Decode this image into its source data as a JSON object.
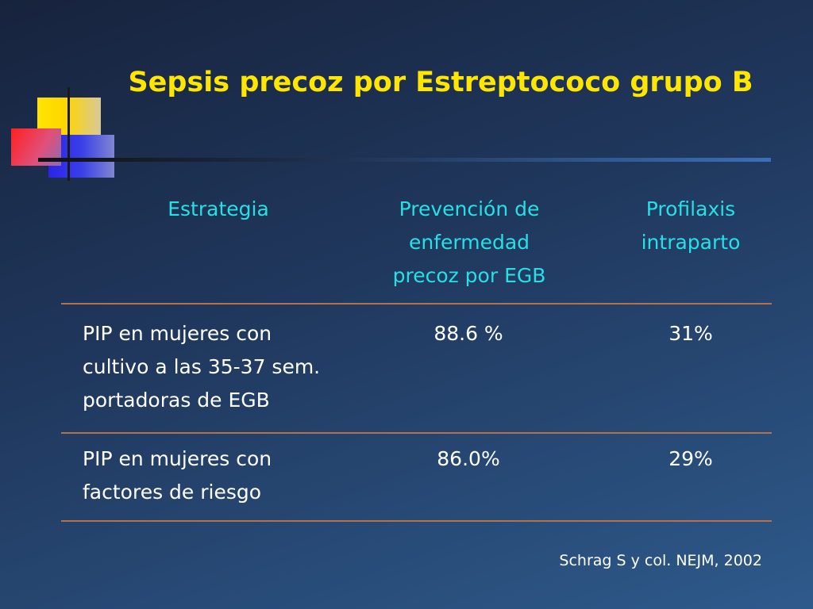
{
  "title": "Sepsis precoz por Estreptococo grupo B",
  "table": {
    "headers": [
      "Estrategia",
      "Prevención de\nenfermedad\nprecoz por EGB",
      "Profilaxis\nintraparto"
    ],
    "rows": [
      [
        "PIP en mujeres con\ncultivo a las 35-37 sem.\nportadoras de EGB",
        "88.6 %",
        "31%"
      ],
      [
        "PIP en mujeres con\nfactores de riesgo",
        "86.0%",
        "29%"
      ]
    ]
  },
  "citation": "Schrag S y col. NEJM, 2002",
  "colors": {
    "title": "#ffe600",
    "header_text": "#27e0e6",
    "body_text": "#ffffff",
    "rule": "#b5724a",
    "background": "#20385e"
  }
}
